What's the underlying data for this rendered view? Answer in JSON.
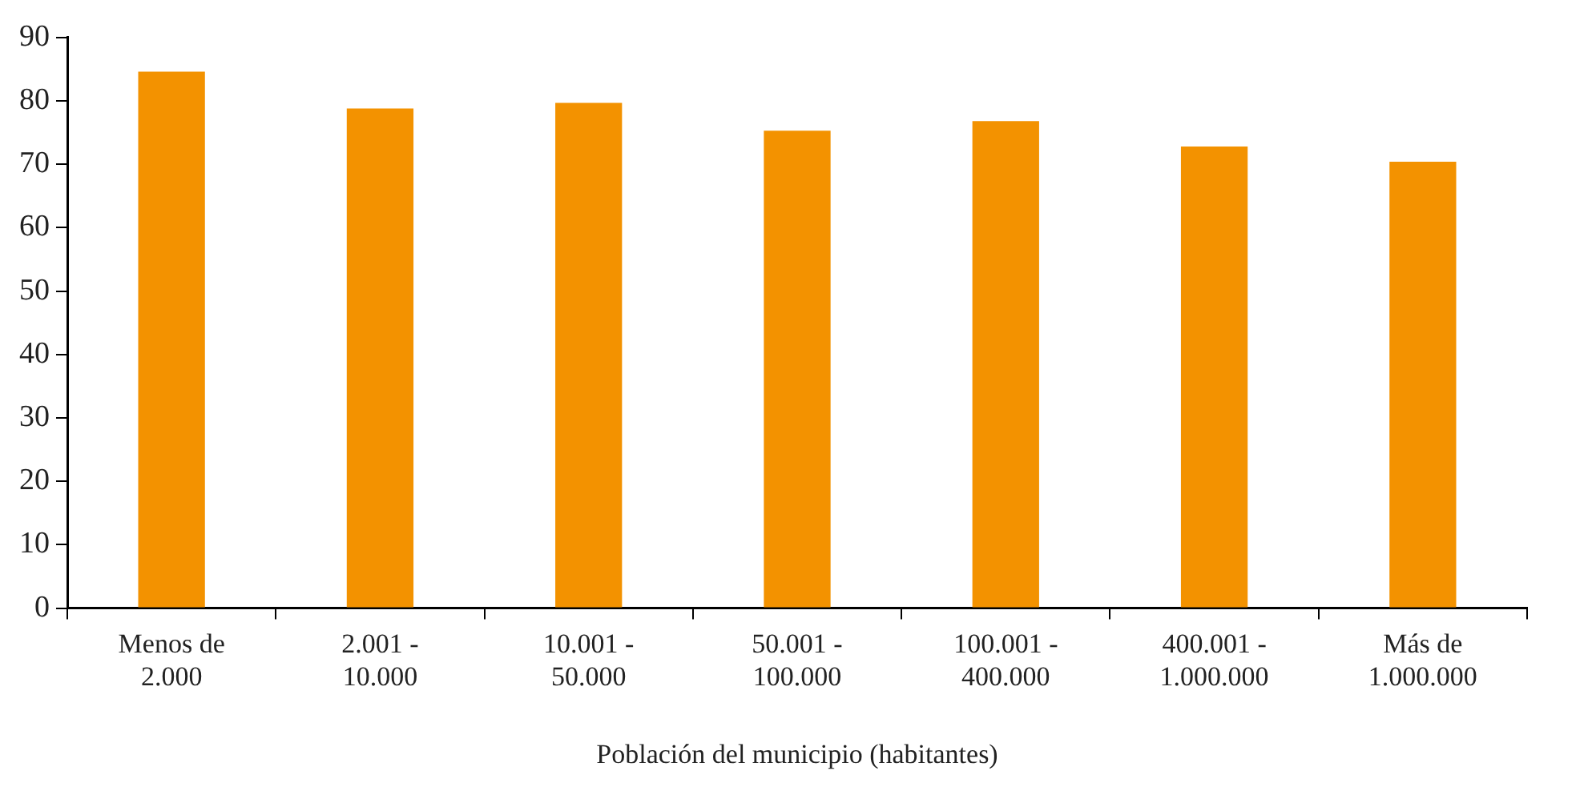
{
  "chart_data": {
    "type": "bar",
    "xlabel": "Población del municipio (habitantes)",
    "categories": [
      "Menos de 2.000",
      "2.001 - 10.000",
      "10.001 - 50.000",
      "50.001 - 100.000",
      "100.001 - 400.000",
      "400.001 - 1.000.000",
      "Más de 1.000.000"
    ],
    "values": [
      84.6,
      78.8,
      79.7,
      75.3,
      76.8,
      72.8,
      70.4
    ],
    "color": "#f39200",
    "ylim": [
      0,
      90
    ],
    "yticks": [
      0,
      10,
      20,
      30,
      40,
      50,
      60,
      70,
      80,
      90
    ],
    "grid": false,
    "legend": false
  }
}
